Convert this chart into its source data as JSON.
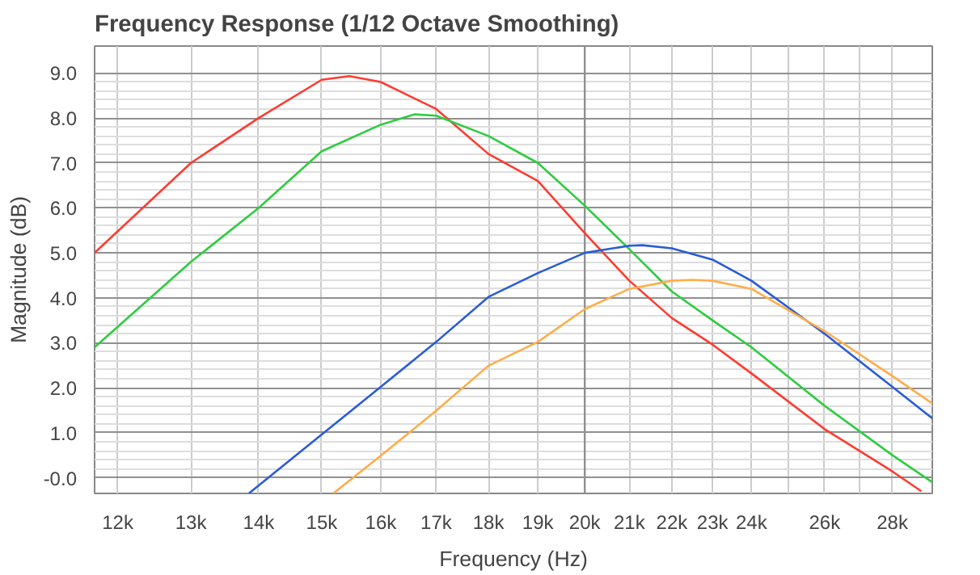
{
  "chart_data": {
    "type": "line",
    "title": "Frequency Response (1/12 Octave Smoothing)",
    "xlabel": "Frequency (Hz)",
    "ylabel": "Magnitude (dB)",
    "log": "x",
    "grid": true,
    "marker": "none",
    "line_style": "solid",
    "xlim": [
      11700,
      29250
    ],
    "ylim": [
      -0.35,
      9.6
    ],
    "xticks": [
      {
        "value": 12000,
        "label": "12k"
      },
      {
        "value": 13000,
        "label": "13k"
      },
      {
        "value": 14000,
        "label": "14k"
      },
      {
        "value": 15000,
        "label": "15k"
      },
      {
        "value": 16000,
        "label": "16k"
      },
      {
        "value": 17000,
        "label": "17k"
      },
      {
        "value": 18000,
        "label": "18k"
      },
      {
        "value": 19000,
        "label": "19k"
      },
      {
        "value": 20000,
        "label": "20k"
      },
      {
        "value": 21000,
        "label": "21k"
      },
      {
        "value": 22000,
        "label": "22k"
      },
      {
        "value": 23000,
        "label": "23k"
      },
      {
        "value": 24000,
        "label": "24k"
      },
      {
        "value": 25000,
        "label": null
      },
      {
        "value": 26000,
        "label": "26k"
      },
      {
        "value": 27000,
        "label": null
      },
      {
        "value": 28000,
        "label": "28k"
      }
    ],
    "yticks": [
      {
        "value": 0,
        "label": "-0.0"
      },
      {
        "value": 1,
        "label": "1.0"
      },
      {
        "value": 2,
        "label": "2.0"
      },
      {
        "value": 3,
        "label": "3.0"
      },
      {
        "value": 4,
        "label": "4.0"
      },
      {
        "value": 5,
        "label": "5.0"
      },
      {
        "value": 6,
        "label": "6.0"
      },
      {
        "value": 7,
        "label": "7.0"
      },
      {
        "value": 8,
        "label": "8.0"
      },
      {
        "value": 9,
        "label": "9.0"
      }
    ],
    "ref_lines": [
      {
        "axis": "x",
        "value": 20000,
        "color": "#909090"
      }
    ],
    "series": [
      {
        "color": "#ff3b30",
        "x": [
          11700,
          13000,
          14000,
          15000,
          15460,
          16000,
          17000,
          18000,
          19000,
          20000,
          21000,
          22000,
          23000,
          24000,
          26000,
          28000,
          28900
        ],
        "values": [
          5.0,
          7.0,
          8.0,
          8.85,
          8.93,
          8.8,
          8.2,
          7.2,
          6.6,
          5.44,
          4.38,
          3.55,
          2.96,
          2.32,
          1.08,
          0.14,
          -0.3
        ]
      },
      {
        "color": "#2ecc40",
        "x": [
          11700,
          13000,
          14000,
          15000,
          16000,
          16600,
          17000,
          18000,
          19000,
          20000,
          21000,
          22000,
          23000,
          24000,
          26000,
          28000,
          29250
        ],
        "values": [
          2.9,
          4.8,
          6.0,
          7.26,
          7.85,
          8.08,
          8.05,
          7.6,
          7.0,
          6.05,
          5.08,
          4.14,
          3.5,
          2.9,
          1.6,
          0.5,
          -0.1
        ]
      },
      {
        "color": "#2a5cd6",
        "x": [
          13850,
          15000,
          16000,
          17000,
          18000,
          19000,
          20000,
          21000,
          21300,
          22000,
          23000,
          24000,
          26000,
          28000,
          29250
        ],
        "values": [
          -0.35,
          0.96,
          2.02,
          3.02,
          4.02,
          4.55,
          5.0,
          5.16,
          5.17,
          5.1,
          4.85,
          4.38,
          3.2,
          2.02,
          1.32
        ]
      },
      {
        "color": "#ffad4a",
        "x": [
          15190,
          16000,
          17000,
          18000,
          19000,
          20000,
          21000,
          22000,
          22500,
          23000,
          24000,
          26000,
          28000,
          29250
        ],
        "values": [
          -0.35,
          0.49,
          1.49,
          2.49,
          3.02,
          3.75,
          4.2,
          4.38,
          4.4,
          4.38,
          4.2,
          3.26,
          2.26,
          1.65
        ]
      }
    ]
  }
}
